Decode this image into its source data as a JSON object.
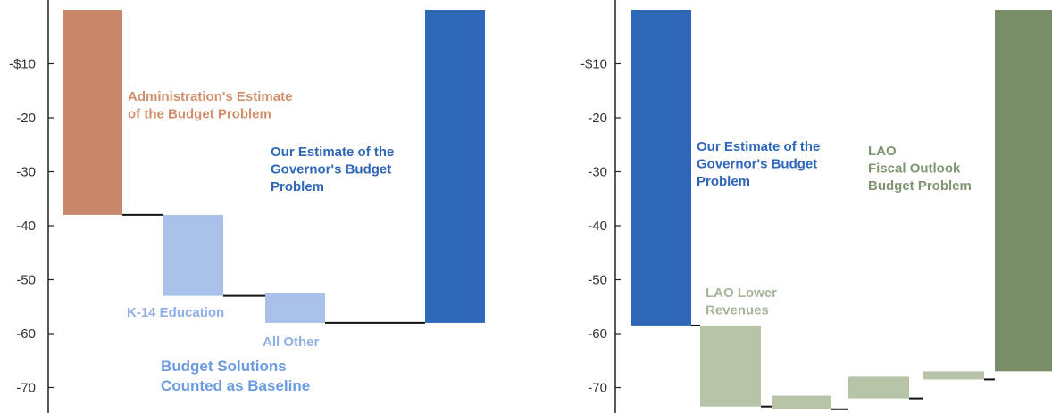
{
  "chart_data": [
    {
      "type": "bar",
      "subtype": "waterfall",
      "ylim": [
        -74,
        0
      ],
      "yticks": [
        -10,
        -20,
        -30,
        -40,
        -50,
        -60,
        -70
      ],
      "ytick_labels": [
        "-$10",
        "-20",
        "-30",
        "-40",
        "-50",
        "-60",
        "-70"
      ],
      "bars": [
        {
          "id": "administration-estimate",
          "start": 0,
          "end": -38,
          "color": "#c8876a"
        },
        {
          "id": "k14-education",
          "start": -38,
          "end": -53,
          "color": "#a9c0e8"
        },
        {
          "id": "all-other",
          "start": -52.5,
          "end": -58,
          "color": "#a9c0e8"
        },
        {
          "id": "our-estimate",
          "start": 0,
          "end": -58,
          "color": "#2e67b7"
        }
      ],
      "annotations": [
        {
          "id": "administration-estimate",
          "lines": [
            "Administration's Estimate",
            "of the Budget Problem"
          ],
          "color": "#d0906e"
        },
        {
          "id": "our-estimate",
          "lines": [
            "Our Estimate of the",
            "Governor's Budget",
            "Problem"
          ],
          "color": "#2e67b7"
        },
        {
          "id": "k14-education",
          "lines": [
            "K-14 Education"
          ],
          "color": "#8fb0e6"
        },
        {
          "id": "all-other",
          "lines": [
            "All Other"
          ],
          "color": "#8fb0e6"
        },
        {
          "id": "budget-solutions",
          "lines": [
            "Budget Solutions",
            "Counted as Baseline"
          ],
          "color": "#6b9be0"
        }
      ]
    },
    {
      "type": "bar",
      "subtype": "waterfall",
      "ylim": [
        -74,
        0
      ],
      "yticks": [
        -10,
        -20,
        -30,
        -40,
        -50,
        -60,
        -70
      ],
      "ytick_labels": [
        "-$10",
        "-20",
        "-30",
        "-40",
        "-50",
        "-60",
        "-70"
      ],
      "bars": [
        {
          "id": "our-estimate",
          "start": 0,
          "end": -58.5,
          "color": "#2e67b7"
        },
        {
          "id": "lao-lower-revenues",
          "start": -58.5,
          "end": -73.5,
          "color": "#b7c4a7"
        },
        {
          "id": "step-2",
          "start": -71.5,
          "end": -74,
          "color": "#b7c4a7"
        },
        {
          "id": "step-3",
          "start": -68,
          "end": -72,
          "color": "#b7c4a7"
        },
        {
          "id": "step-4",
          "start": -67,
          "end": -68.5,
          "color": "#b7c4a7"
        },
        {
          "id": "lao-fiscal-outlook",
          "start": 0,
          "end": -67,
          "color": "#778d68"
        }
      ],
      "annotations": [
        {
          "id": "our-estimate",
          "lines": [
            "Our Estimate of the",
            "Governor's Budget",
            "Problem"
          ],
          "color": "#2e67b7"
        },
        {
          "id": "lao-fiscal-outlook",
          "lines": [
            "LAO",
            "Fiscal Outlook",
            "Budget Problem"
          ],
          "color": "#7f9670"
        },
        {
          "id": "lao-lower-revenues",
          "lines": [
            "LAO Lower",
            "Revenues"
          ],
          "color": "#a6b59a"
        }
      ]
    }
  ]
}
